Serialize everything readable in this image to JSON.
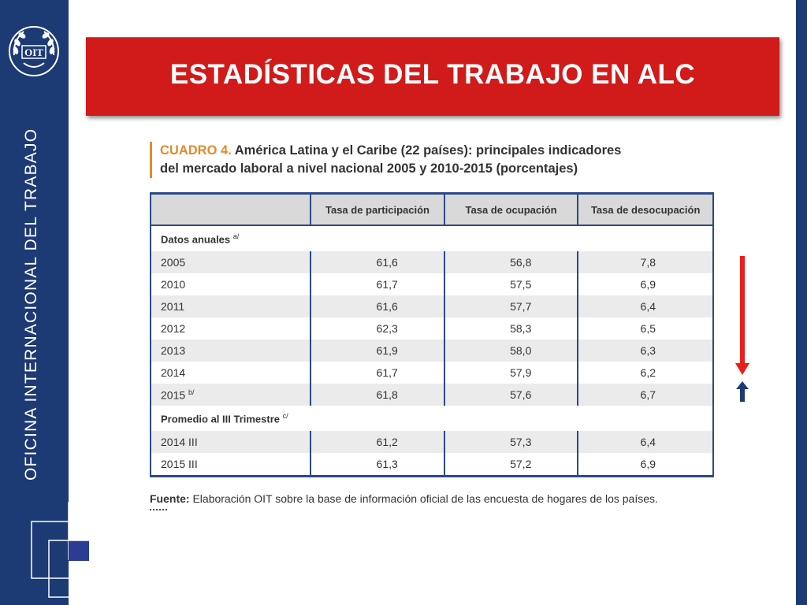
{
  "side": {
    "vertical_label": "OFICINA INTERNACIONAL DEL TRABAJO",
    "logo_text": "OIT"
  },
  "banner": {
    "title": "ESTADÍSTICAS DEL TRABAJO EN ALC"
  },
  "cuadro": {
    "tag": "CUADRO 4.",
    "line1": "América Latina y el Caribe (22 países): principales indicadores",
    "line2": "del mercado laboral a nivel nacional 2005 y 2010-2015 (porcentajes)"
  },
  "table": {
    "headers": [
      "",
      "Tasa de participación",
      "Tasa de ocupación",
      "Tasa de desocupación"
    ],
    "section1": {
      "label": "Datos anuales",
      "note": "a/"
    },
    "annual_rows": [
      {
        "year": "2005",
        "note": "",
        "participacion": "61,6",
        "ocupacion": "56,8",
        "desocupacion": "7,8"
      },
      {
        "year": "2010",
        "note": "",
        "participacion": "61,7",
        "ocupacion": "57,5",
        "desocupacion": "6,9"
      },
      {
        "year": "2011",
        "note": "",
        "participacion": "61,6",
        "ocupacion": "57,7",
        "desocupacion": "6,4"
      },
      {
        "year": "2012",
        "note": "",
        "participacion": "62,3",
        "ocupacion": "58,3",
        "desocupacion": "6,5"
      },
      {
        "year": "2013",
        "note": "",
        "participacion": "61,9",
        "ocupacion": "58,0",
        "desocupacion": "6,3"
      },
      {
        "year": "2014",
        "note": "",
        "participacion": "61,7",
        "ocupacion": "57,9",
        "desocupacion": "6,2"
      },
      {
        "year": "2015",
        "note": "b/",
        "participacion": "61,8",
        "ocupacion": "57,6",
        "desocupacion": "6,7"
      }
    ],
    "section2": {
      "label": "Promedio al III Trimestre",
      "note": "c/"
    },
    "quarter_rows": [
      {
        "year": "2014 III",
        "participacion": "61,2",
        "ocupacion": "57,3",
        "desocupacion": "6,4"
      },
      {
        "year": "2015 III",
        "participacion": "61,3",
        "ocupacion": "57,2",
        "desocupacion": "6,9"
      }
    ]
  },
  "source": {
    "label": "Fuente:",
    "text": "Elaboración OIT sobre la base de información oficial de las encuesta de hogares de los países."
  },
  "colors": {
    "navy": "#1c3a73",
    "banner_red": "#d11a1a",
    "accent_orange": "#e38a2a",
    "arrow_red": "#e8201c",
    "arrow_blue": "#1c3a73"
  },
  "icons": {
    "down_arrow": "red-down-arrow-icon",
    "up_arrow": "blue-up-arrow-icon"
  }
}
